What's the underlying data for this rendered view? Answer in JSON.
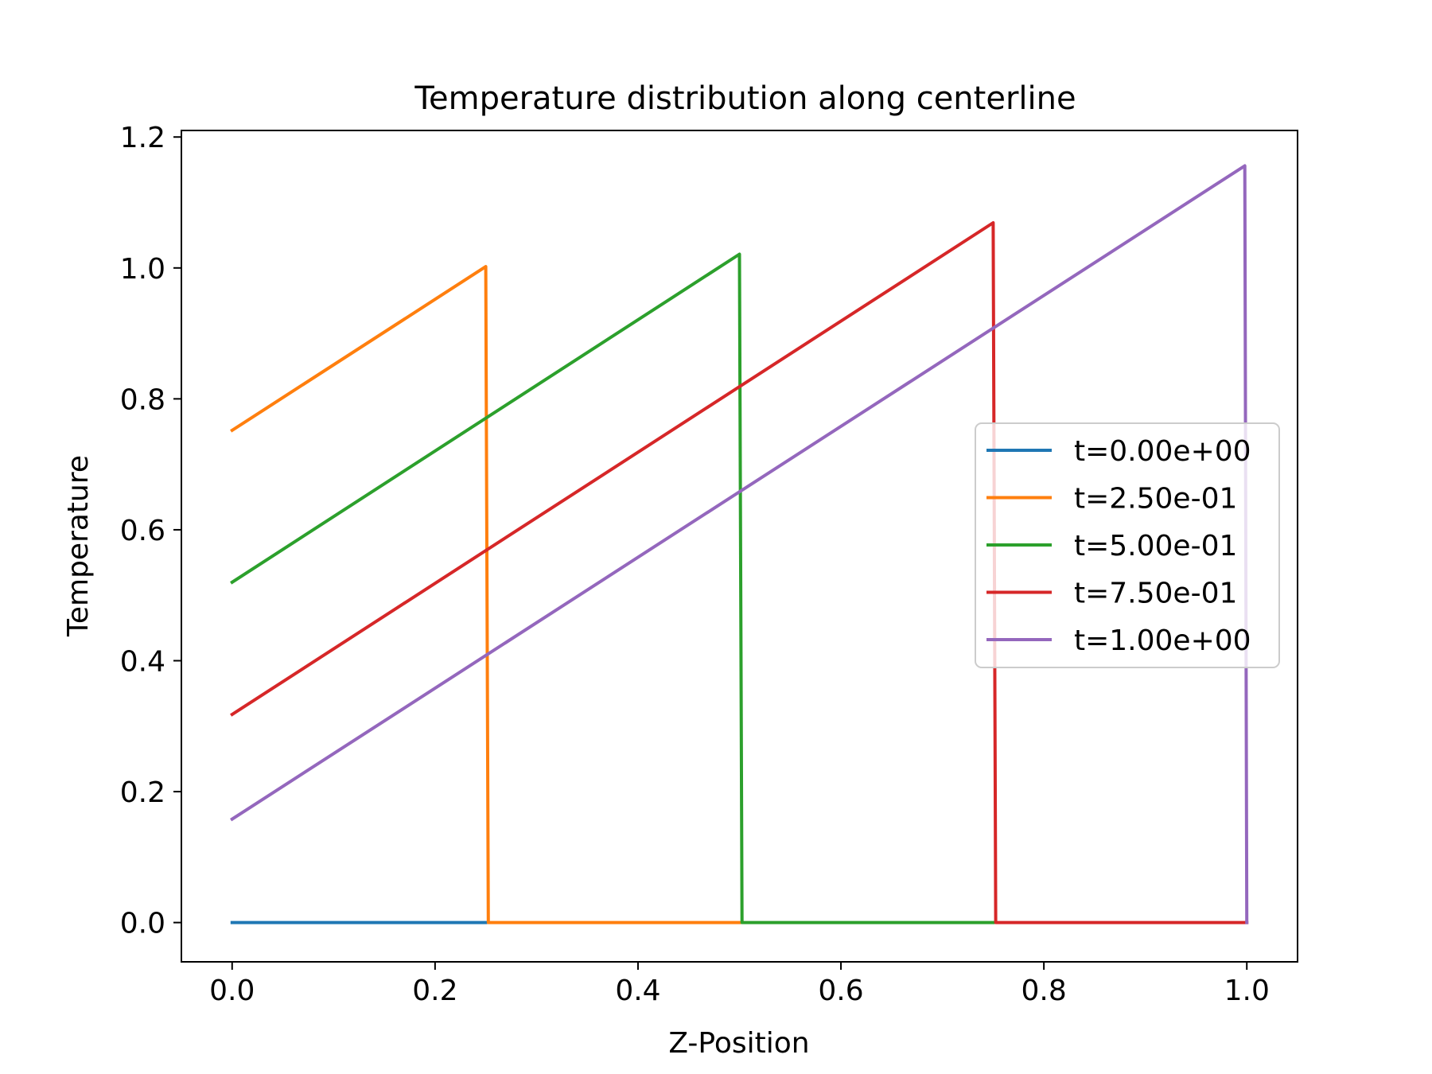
{
  "chart_data": {
    "type": "line",
    "title": "Temperature distribution along centerline",
    "xlabel": "Z-Position",
    "ylabel": "Temperature",
    "xlim": [
      -0.05,
      1.05
    ],
    "ylim": [
      -0.06,
      1.21
    ],
    "xticks": [
      "0.0",
      "0.2",
      "0.4",
      "0.6",
      "0.8",
      "1.0"
    ],
    "yticks": [
      "0.0",
      "0.2",
      "0.4",
      "0.6",
      "0.8",
      "1.0",
      "1.2"
    ],
    "grid": false,
    "legend_position": "center-right",
    "series": [
      {
        "name": "t=0.00e+00",
        "color": "#1f77b4",
        "x": [
          0.0,
          0.25
        ],
        "y": [
          0.0,
          0.0
        ]
      },
      {
        "name": "t=2.50e-01",
        "color": "#ff7f0e",
        "x": [
          0.0,
          0.25,
          0.2525,
          0.5
        ],
        "y": [
          0.752,
          1.002,
          0.0,
          0.0
        ]
      },
      {
        "name": "t=5.00e-01",
        "color": "#2ca02c",
        "x": [
          0.0,
          0.5,
          0.5025,
          0.75
        ],
        "y": [
          0.52,
          1.021,
          0.0,
          0.0
        ]
      },
      {
        "name": "t=7.50e-01",
        "color": "#d62728",
        "x": [
          0.0,
          0.75,
          0.7525,
          1.0
        ],
        "y": [
          0.318,
          1.069,
          0.0,
          0.0
        ]
      },
      {
        "name": "t=1.00e+00",
        "color": "#9467bd",
        "x": [
          0.0,
          0.998,
          1.0
        ],
        "y": [
          0.158,
          1.156,
          0.0
        ]
      }
    ]
  }
}
